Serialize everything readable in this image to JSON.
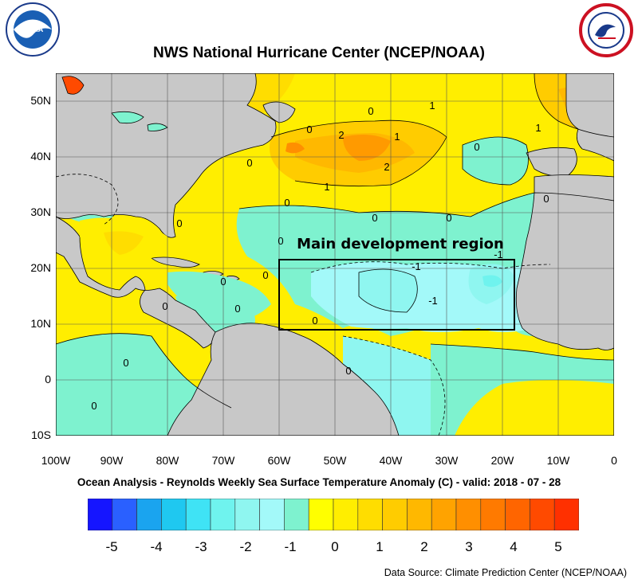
{
  "title": "NWS National Hurricane Center (NCEP/NOAA)",
  "subtitle": "Ocean Analysis - Reynolds Weekly Sea Surface Temperature Anomaly (C) - valid: 2018 - 07 - 28",
  "source": "Data Source: Climate Prediction Center (NCEP/NOAA)",
  "annotation": "Main development region",
  "logos": {
    "left": "NOAA",
    "right": "NATIONAL WEATHER SERVICE"
  },
  "lat_labels": [
    "50N",
    "40N",
    "30N",
    "20N",
    "10N",
    "0",
    "10S"
  ],
  "lon_labels": [
    "100W",
    "90W",
    "80W",
    "70W",
    "60W",
    "50W",
    "40W",
    "30W",
    "20W",
    "10W",
    "0"
  ],
  "colorbar": {
    "labels": [
      "-5",
      "-4",
      "-3",
      "-2",
      "-1",
      "0",
      "1",
      "2",
      "3",
      "4",
      "5"
    ],
    "colors": [
      "#1515ff",
      "#2a60ff",
      "#1aa4ef",
      "#1fc8f0",
      "#3fe3f5",
      "#6ff3ee",
      "#8ff6f0",
      "#a3f9f9",
      "#7ef2cf",
      "#ffff00",
      "#ffee00",
      "#ffdd00",
      "#ffcc00",
      "#ffb800",
      "#ffa300",
      "#ff8f00",
      "#ff7a00",
      "#ff6500",
      "#ff4a00",
      "#ff3000"
    ]
  },
  "contour_labels": [
    "0",
    "0",
    "0",
    "0",
    "0",
    "0",
    "0",
    "0",
    "0",
    "0",
    "0",
    "0",
    "0",
    "0",
    "0",
    "0",
    "0",
    "0",
    "1",
    "1",
    "1",
    "1",
    "2",
    "2",
    "-1",
    "-1",
    "-1"
  ],
  "colors": {
    "land": "#c8c8c8",
    "mdr_box": "#000000"
  }
}
